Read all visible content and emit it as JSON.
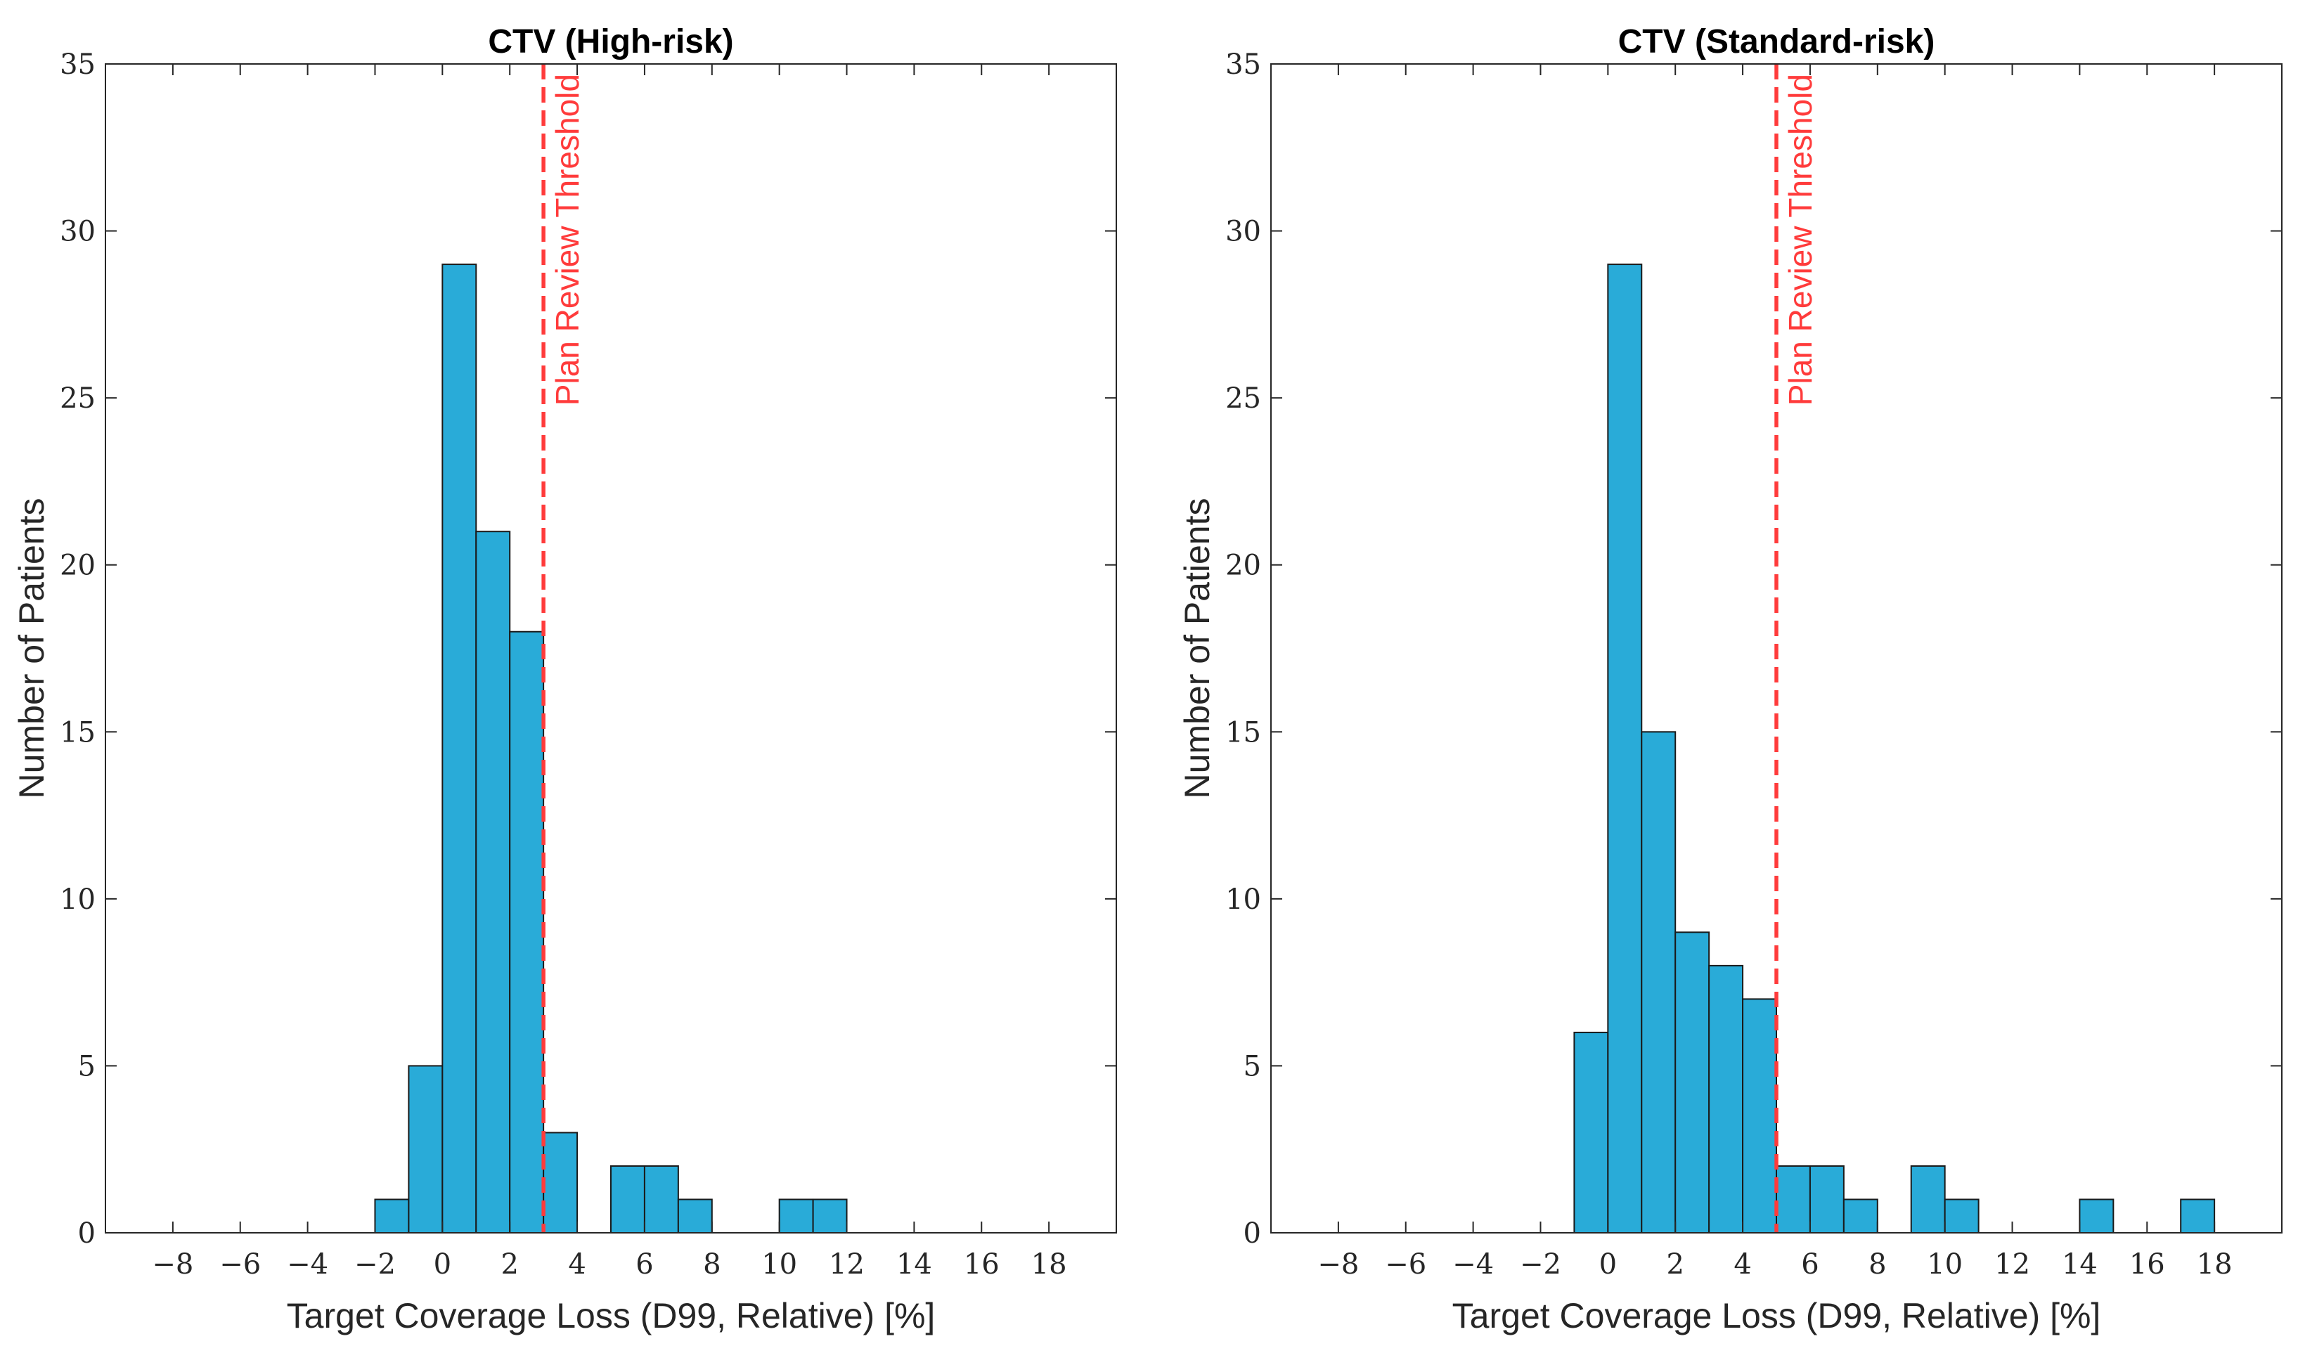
{
  "chart_data": [
    {
      "type": "bar",
      "subtype": "histogram",
      "title": "CTV (High-risk)",
      "xlabel": "Target Coverage Loss (D99, Relative) [%]",
      "ylabel": "Number of Patients",
      "xlim": [
        -10,
        20
      ],
      "ylim": [
        0,
        35
      ],
      "xticks": [
        -8,
        -6,
        -4,
        -2,
        0,
        2,
        4,
        6,
        8,
        10,
        12,
        14,
        16,
        18
      ],
      "xtick_labels": [
        "−8",
        "−6",
        "−4",
        "−2",
        "0",
        "2",
        "4",
        "6",
        "8",
        "10",
        "12",
        "14",
        "16",
        "18"
      ],
      "yticks": [
        0,
        5,
        10,
        15,
        20,
        25,
        30,
        35
      ],
      "ytick_labels": [
        "0",
        "5",
        "10",
        "15",
        "20",
        "25",
        "30",
        "35"
      ],
      "bins": [
        {
          "start": -2,
          "end": -1,
          "count": 1
        },
        {
          "start": -1,
          "end": 0,
          "count": 5
        },
        {
          "start": 0,
          "end": 1,
          "count": 29
        },
        {
          "start": 1,
          "end": 2,
          "count": 21
        },
        {
          "start": 2,
          "end": 3,
          "count": 18
        },
        {
          "start": 3,
          "end": 4,
          "count": 3
        },
        {
          "start": 5,
          "end": 6,
          "count": 2
        },
        {
          "start": 6,
          "end": 7,
          "count": 2
        },
        {
          "start": 7,
          "end": 8,
          "count": 1
        },
        {
          "start": 10,
          "end": 11,
          "count": 1
        },
        {
          "start": 11,
          "end": 12,
          "count": 1
        }
      ],
      "threshold": {
        "x": 3,
        "label": "Plan Review Threshold"
      },
      "grid": false
    },
    {
      "type": "bar",
      "subtype": "histogram",
      "title": "CTV (Standard-risk)",
      "xlabel": "Target Coverage Loss (D99, Relative) [%]",
      "ylabel": "Number of Patients",
      "xlim": [
        -10,
        20
      ],
      "ylim": [
        0,
        35
      ],
      "xticks": [
        -8,
        -6,
        -4,
        -2,
        0,
        2,
        4,
        6,
        8,
        10,
        12,
        14,
        16,
        18
      ],
      "xtick_labels": [
        "−8",
        "−6",
        "−4",
        "−2",
        "0",
        "2",
        "4",
        "6",
        "8",
        "10",
        "12",
        "14",
        "16",
        "18"
      ],
      "yticks": [
        0,
        5,
        10,
        15,
        20,
        25,
        30,
        35
      ],
      "ytick_labels": [
        "0",
        "5",
        "10",
        "15",
        "20",
        "25",
        "30",
        "35"
      ],
      "bins": [
        {
          "start": -1,
          "end": 0,
          "count": 6
        },
        {
          "start": 0,
          "end": 1,
          "count": 29
        },
        {
          "start": 1,
          "end": 2,
          "count": 15
        },
        {
          "start": 2,
          "end": 3,
          "count": 9
        },
        {
          "start": 3,
          "end": 4,
          "count": 8
        },
        {
          "start": 4,
          "end": 5,
          "count": 7
        },
        {
          "start": 5,
          "end": 6,
          "count": 2
        },
        {
          "start": 6,
          "end": 7,
          "count": 2
        },
        {
          "start": 7,
          "end": 8,
          "count": 1
        },
        {
          "start": 9,
          "end": 10,
          "count": 2
        },
        {
          "start": 10,
          "end": 11,
          "count": 1
        },
        {
          "start": 14,
          "end": 15,
          "count": 1
        },
        {
          "start": 17,
          "end": 18,
          "count": 1
        }
      ],
      "threshold": {
        "x": 5,
        "label": "Plan Review Threshold"
      },
      "grid": false
    }
  ],
  "style": {
    "bar_fill": "#29abd8",
    "bar_edge": "#1a1a1a",
    "threshold_color": "#ff3b3b",
    "axis_color": "#262626",
    "title_color": "#000000"
  }
}
